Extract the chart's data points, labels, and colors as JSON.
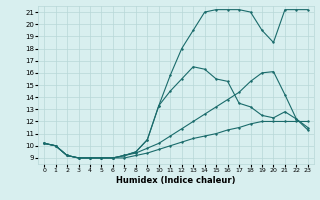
{
  "title": "",
  "xlabel": "Humidex (Indice chaleur)",
  "ylabel": "",
  "bg_color": "#d8efef",
  "grid_color": "#b8d8d8",
  "line_color": "#1a6b6b",
  "xlim": [
    -0.5,
    23.5
  ],
  "ylim": [
    8.5,
    21.5
  ],
  "xticks": [
    0,
    1,
    2,
    3,
    4,
    5,
    6,
    7,
    8,
    9,
    10,
    11,
    12,
    13,
    14,
    15,
    16,
    17,
    18,
    19,
    20,
    21,
    22,
    23
  ],
  "yticks": [
    9,
    10,
    11,
    12,
    13,
    14,
    15,
    16,
    17,
    18,
    19,
    20,
    21
  ],
  "line1_x": [
    0,
    1,
    2,
    3,
    4,
    5,
    6,
    7,
    8,
    9,
    10,
    11,
    12,
    13,
    14,
    15,
    16,
    17,
    18,
    19,
    20,
    21,
    22,
    23
  ],
  "line1_y": [
    10.2,
    10.0,
    9.2,
    9.0,
    9.0,
    9.0,
    9.0,
    9.0,
    9.2,
    9.4,
    9.7,
    10.0,
    10.3,
    10.6,
    10.8,
    11.0,
    11.3,
    11.5,
    11.8,
    12.0,
    12.0,
    12.0,
    12.0,
    12.0
  ],
  "line2_x": [
    0,
    1,
    2,
    3,
    4,
    5,
    6,
    7,
    8,
    9,
    10,
    11,
    12,
    13,
    14,
    15,
    16,
    17,
    18,
    19,
    20,
    21,
    22,
    23
  ],
  "line2_y": [
    10.2,
    10.0,
    9.2,
    9.0,
    9.0,
    9.0,
    9.0,
    9.2,
    9.4,
    9.8,
    10.2,
    10.8,
    11.4,
    12.0,
    12.6,
    13.2,
    13.8,
    14.4,
    15.3,
    16.0,
    16.1,
    14.2,
    12.2,
    11.5
  ],
  "line3_x": [
    0,
    1,
    2,
    3,
    4,
    5,
    6,
    7,
    8,
    9,
    10,
    11,
    12,
    13,
    14,
    15,
    16,
    17,
    18,
    19,
    20,
    21,
    22,
    23
  ],
  "line3_y": [
    10.2,
    10.0,
    9.2,
    9.0,
    9.0,
    9.0,
    9.0,
    9.2,
    9.5,
    10.5,
    13.3,
    14.5,
    15.5,
    16.5,
    16.3,
    15.5,
    15.3,
    13.5,
    13.2,
    12.5,
    12.3,
    12.8,
    12.2,
    11.3
  ],
  "line4_x": [
    0,
    1,
    2,
    3,
    4,
    5,
    6,
    7,
    8,
    9,
    10,
    11,
    12,
    13,
    14,
    15,
    16,
    17,
    18,
    19,
    20,
    21,
    22,
    23
  ],
  "line4_y": [
    10.2,
    10.0,
    9.2,
    9.0,
    9.0,
    9.0,
    9.0,
    9.2,
    9.5,
    10.5,
    13.3,
    15.8,
    18.0,
    19.5,
    21.0,
    21.2,
    21.2,
    21.2,
    21.0,
    19.5,
    18.5,
    21.2,
    21.2,
    21.2
  ],
  "figsize": [
    3.2,
    2.0
  ],
  "dpi": 100
}
